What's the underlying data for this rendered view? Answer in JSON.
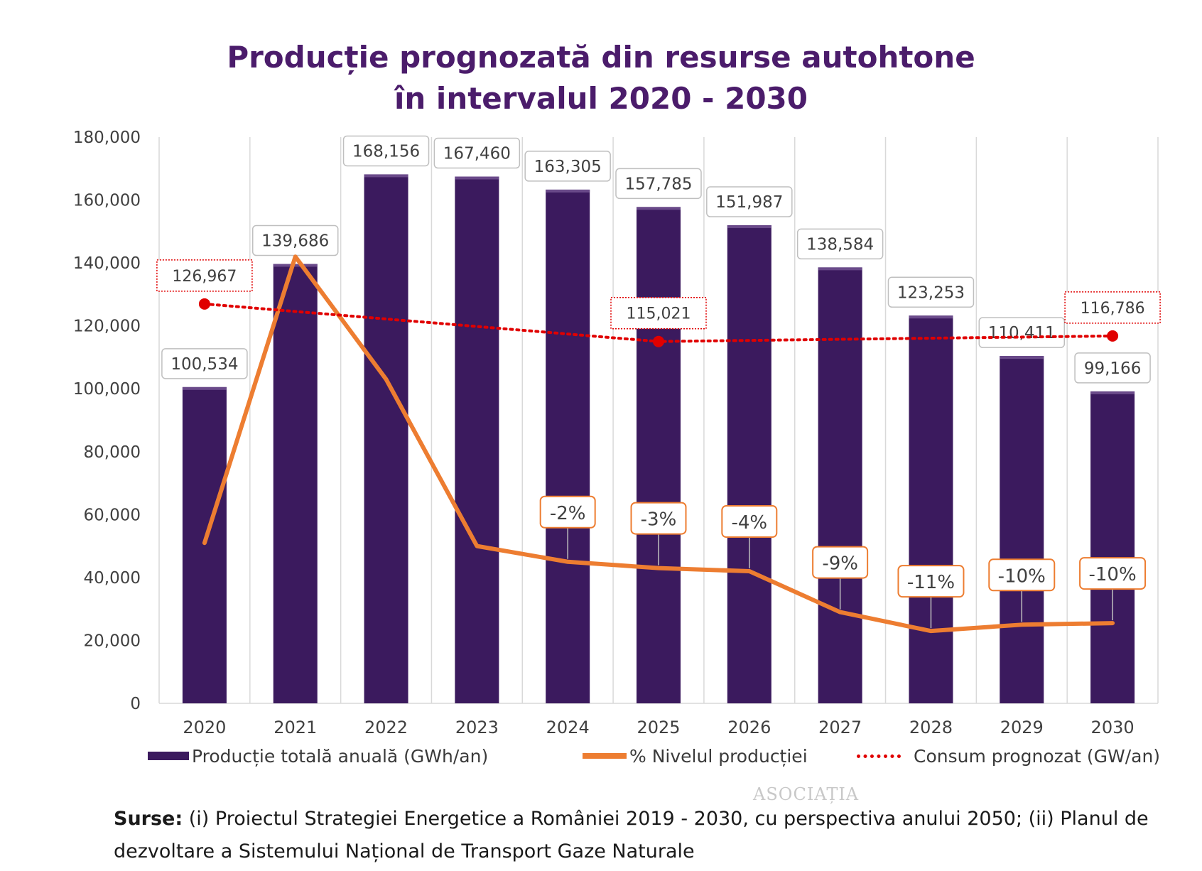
{
  "chart_data": {
    "type": "bar",
    "title_lines": [
      "Producție prognozată din resurse autohtone",
      "în intervalul 2020 - 2030"
    ],
    "categories": [
      "2020",
      "2021",
      "2022",
      "2023",
      "2024",
      "2025",
      "2026",
      "2027",
      "2028",
      "2029",
      "2030"
    ],
    "ylim": [
      0,
      180000
    ],
    "y_ticks": [
      "0",
      "20,000",
      "40,000",
      "60,000",
      "80,000",
      "100,000",
      "120,000",
      "140,000",
      "160,000",
      "180,000"
    ],
    "grid": "vertical",
    "legend_position": "bottom",
    "series": [
      {
        "name": "Producție totală anuală (GWh/an)",
        "kind": "bar",
        "color": "#3b1a5e",
        "values": [
          100534,
          139686,
          168156,
          167460,
          163305,
          157785,
          151987,
          138584,
          123253,
          110411,
          99166
        ],
        "labels": [
          "100,534",
          "139,686",
          "168,156",
          "167,460",
          "163,305",
          "157,785",
          "151,987",
          "138,584",
          "123,253",
          "110,411",
          "99,166"
        ]
      },
      {
        "name": "% Nivelul producției",
        "kind": "line",
        "color": "#ed7d31",
        "values": [
          51000,
          142000,
          103000,
          50000,
          45000,
          43000,
          42000,
          29000,
          23000,
          25000,
          25500
        ],
        "labels": [
          "",
          "",
          "",
          "",
          "-2%",
          "-3%",
          "-4%",
          "-9%",
          "-11%",
          "-10%",
          "-10%"
        ]
      },
      {
        "name": "Consum prognozat (GW/an)",
        "kind": "dotted-line",
        "color": "#e00000",
        "points": [
          {
            "x": "2020",
            "y": 126967,
            "label": "126,967"
          },
          {
            "x": "2025",
            "y": 115021,
            "label": "115,021"
          },
          {
            "x": "2030",
            "y": 116786,
            "label": "116,786"
          }
        ]
      }
    ]
  },
  "source": {
    "label": "Surse:",
    "text": " (i) Proiectul Strategiei Energetice a României 2019 - 2030, cu perspectiva anului 2050; (ii) Planul de dezvoltare a Sistemului Național de Transport Gaze Naturale"
  },
  "watermark": "ASOCIAȚIA"
}
